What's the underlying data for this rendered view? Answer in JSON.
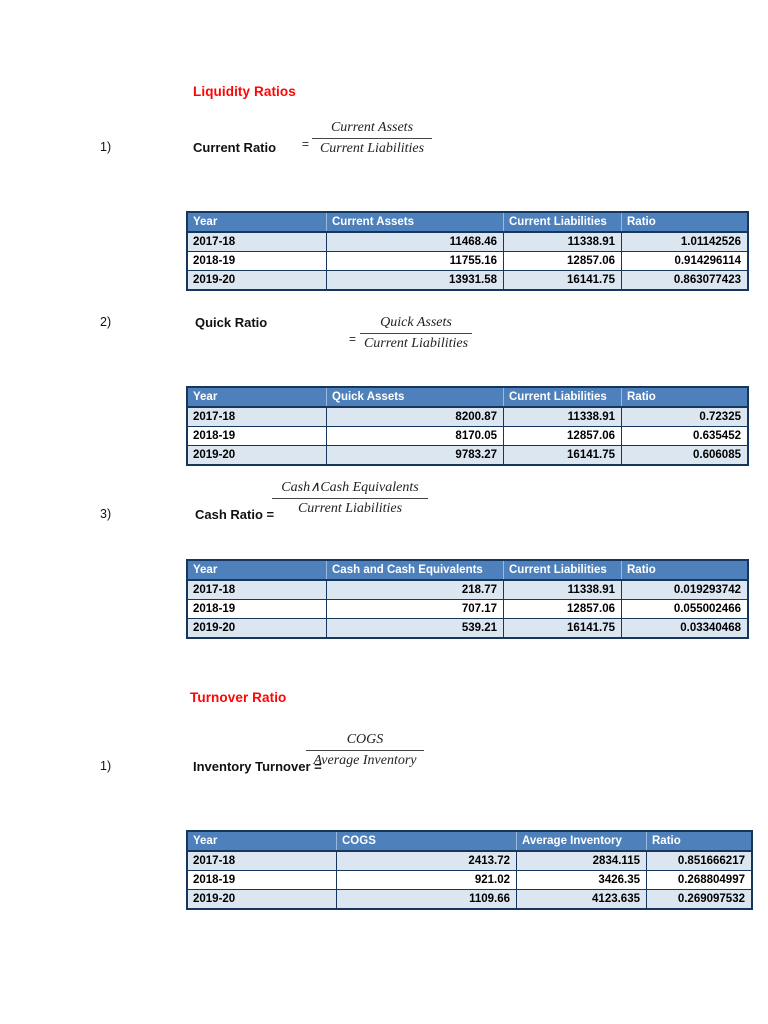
{
  "colors": {
    "heading_red": "#fe0505",
    "table_header_bg": "#4e81bc",
    "table_header_text": "#ffffff",
    "banded_row_bg": "#dce6f1",
    "table_border": "#16365c"
  },
  "headings": {
    "liquidity": "Liquidity Ratios",
    "turnover": "Turnover Ratio"
  },
  "formulas": [
    {
      "num": "1)",
      "label": "Current Ratio",
      "equals": "=",
      "numerator": "Current Assets",
      "denominator": "Current Liabilities"
    },
    {
      "num": "2)",
      "label": "Quick Ratio",
      "equals": "=",
      "numerator": "Quick Assets",
      "denominator": "Current Liabilities"
    },
    {
      "num": "3)",
      "label": "Cash Ratio =",
      "numerator": "Cash∧Cash Equivalents",
      "denominator": "Current Liabilities"
    },
    {
      "num": "1)",
      "label": "Inventory Turnover =",
      "numerator": "COGS",
      "denominator": "Average Inventory"
    }
  ],
  "tables": [
    {
      "title": "current-ratio-table",
      "headers": [
        "Year",
        "Current Assets",
        "Current Liabilities",
        "Ratio"
      ],
      "rows": [
        [
          "2017-18",
          "11468.46",
          "11338.91",
          "1.01142526"
        ],
        [
          "2018-19",
          "11755.16",
          "12857.06",
          "0.914296114"
        ],
        [
          "2019-20",
          "13931.58",
          "16141.75",
          "0.863077423"
        ]
      ]
    },
    {
      "title": "quick-ratio-table",
      "headers": [
        "Year",
        "Quick Assets",
        "Current Liabilities",
        "Ratio"
      ],
      "rows": [
        [
          "2017-18",
          "8200.87",
          "11338.91",
          "0.72325"
        ],
        [
          "2018-19",
          "8170.05",
          "12857.06",
          "0.635452"
        ],
        [
          "2019-20",
          "9783.27",
          "16141.75",
          "0.606085"
        ]
      ]
    },
    {
      "title": "cash-ratio-table",
      "headers": [
        "Year",
        "Cash and Cash Equivalents",
        "Current Liabilities",
        "Ratio"
      ],
      "rows": [
        [
          "2017-18",
          "218.77",
          "11338.91",
          "0.019293742"
        ],
        [
          "2018-19",
          "707.17",
          "12857.06",
          "0.055002466"
        ],
        [
          "2019-20",
          "539.21",
          "16141.75",
          "0.03340468"
        ]
      ]
    },
    {
      "title": "inventory-turnover-table",
      "headers": [
        "Year",
        "COGS",
        "Average Inventory",
        "Ratio"
      ],
      "rows": [
        [
          "2017-18",
          "2413.72",
          "2834.115",
          "0.851666217"
        ],
        [
          "2018-19",
          "921.02",
          "3426.35",
          "0.268804997"
        ],
        [
          "2019-20",
          "1109.66",
          "4123.635",
          "0.269097532"
        ]
      ]
    }
  ]
}
